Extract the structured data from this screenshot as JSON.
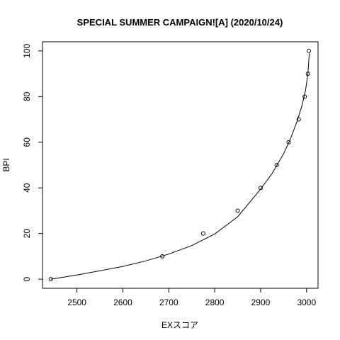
{
  "chart_data": {
    "type": "scatter",
    "title": "SPECIAL SUMMER CAMPAIGN![A] (2020/10/24)",
    "xlabel": "EXスコア",
    "ylabel": "BPI",
    "xlim": [
      2425,
      3025
    ],
    "ylim": [
      -4,
      104
    ],
    "x_ticks": [
      2500,
      2600,
      2700,
      2800,
      2900,
      3000
    ],
    "y_ticks": [
      0,
      20,
      40,
      60,
      80,
      100
    ],
    "grid": false,
    "legend": "none",
    "points": [
      {
        "x": 2443,
        "y": 0
      },
      {
        "x": 2686,
        "y": 10
      },
      {
        "x": 2775,
        "y": 20
      },
      {
        "x": 2850,
        "y": 30
      },
      {
        "x": 2900,
        "y": 40
      },
      {
        "x": 2935,
        "y": 50
      },
      {
        "x": 2961,
        "y": 60
      },
      {
        "x": 2983,
        "y": 70
      },
      {
        "x": 2996,
        "y": 80
      },
      {
        "x": 3003,
        "y": 90
      },
      {
        "x": 3005,
        "y": 100
      }
    ],
    "curve": {
      "x": [
        2443,
        2500,
        2550,
        2600,
        2650,
        2700,
        2750,
        2800,
        2850,
        2900,
        2925,
        2950,
        2965,
        2980,
        2990,
        2998,
        3003,
        3006
      ],
      "y": [
        0,
        1.8,
        3.7,
        5.6,
        8.0,
        11.0,
        14.7,
        19.8,
        27.3,
        39.5,
        46.3,
        55.0,
        61.5,
        69.5,
        76.0,
        83.0,
        90.0,
        99.0
      ]
    }
  }
}
